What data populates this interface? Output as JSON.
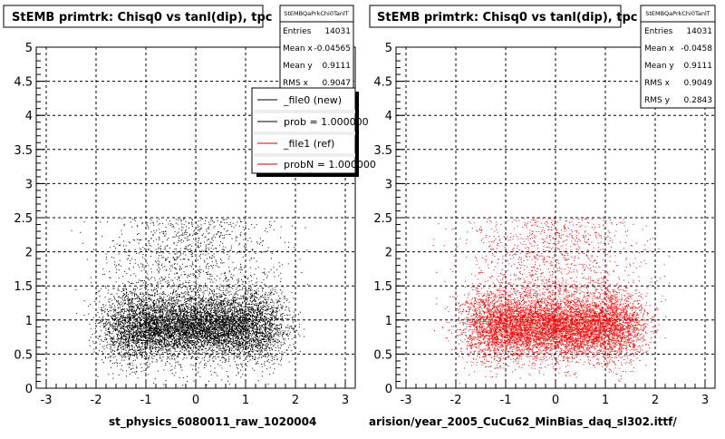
{
  "chart_data": [
    {
      "type": "scatter",
      "title": "StEMB primtrk: Chisq0 vs tanl(dip), tpc",
      "xlabel": "st_physics_6080011_raw_1020004",
      "ylabel": "",
      "xlim": [
        -3.2,
        3.2
      ],
      "ylim": [
        0,
        5
      ],
      "xticks": [
        "-3",
        "-2",
        "-1",
        "0",
        "1",
        "2",
        "3"
      ],
      "yticks": [
        "0",
        "0.5",
        "1",
        "1.5",
        "2",
        "2.5",
        "3",
        "3.5",
        "4",
        "4.5",
        "5"
      ],
      "grid": true,
      "marker_color": "#000000",
      "stats": {
        "header": "StEMBQaPrkChi0TanlT",
        "rows": [
          {
            "label": "Entries",
            "value": "14031"
          },
          {
            "label": "Mean x",
            "value": "-0.04565"
          },
          {
            "label": "Mean y",
            "value": "0.9111"
          },
          {
            "label": "RMS x",
            "value": "0.9047"
          }
        ]
      },
      "legend": {
        "placement": "top-right",
        "entries": [
          {
            "label": "_file0 (new)",
            "color": "#000000"
          },
          {
            "label": "prob = 1.000000",
            "color": "#000000"
          },
          {
            "label": "_file1 (ref)",
            "color": "#cc0000"
          },
          {
            "label": "probN = 1.000000",
            "color": "#cc0000"
          }
        ]
      },
      "series": [
        {
          "values_summary": {
            "entries": 14031,
            "mean_x": -0.04565,
            "mean_y": 0.9111,
            "rms_x": 0.9047
          }
        }
      ]
    },
    {
      "type": "scatter",
      "title": "StEMB primtrk: Chisq0 vs tanl(dip), tpc",
      "xlabel": "arision/year_2005_CuCu62_MinBias_daq_sl302.ittf/",
      "ylabel": "",
      "xlim": [
        -3.2,
        3.2
      ],
      "ylim": [
        0,
        5
      ],
      "xticks": [
        "-3",
        "-2",
        "-1",
        "0",
        "1",
        "2",
        "3"
      ],
      "yticks": [
        "0",
        "0.5",
        "1",
        "1.5",
        "2",
        "2.5",
        "3",
        "3.5",
        "4",
        "4.5",
        "5"
      ],
      "grid": true,
      "marker_color": "#ff0000",
      "stats": {
        "header": "StEMBQaPrkChi0TanlT",
        "rows": [
          {
            "label": "Entries",
            "value": "14031"
          },
          {
            "label": "Mean x",
            "value": "-0.0458"
          },
          {
            "label": "Mean y",
            "value": "0.9111"
          },
          {
            "label": "RMS x",
            "value": "0.9049"
          },
          {
            "label": "RMS y",
            "value": "0.2843"
          }
        ]
      },
      "series": [
        {
          "values_summary": {
            "entries": 14031,
            "mean_x": -0.0458,
            "mean_y": 0.9111,
            "rms_x": 0.9049,
            "rms_y": 0.2843
          }
        }
      ]
    }
  ]
}
